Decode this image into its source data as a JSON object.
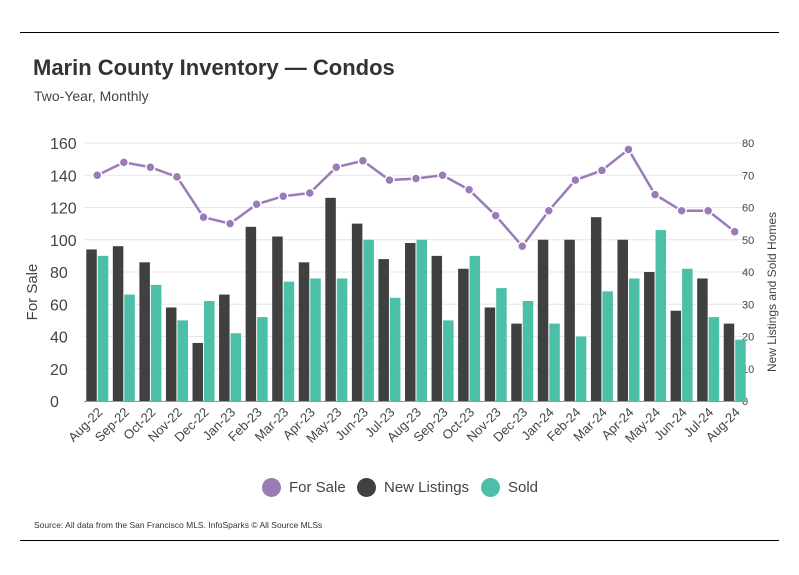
{
  "header": {
    "title": "Marin County Inventory — Condos",
    "subtitle": "Two-Year, Monthly"
  },
  "footer": {
    "source": "Source:  All data from the San Francisco MLS. InfoSparks © All Source MLSs"
  },
  "colors": {
    "for_sale": "#9b7ab8",
    "new_listings": "#404040",
    "sold": "#4bbfa8"
  },
  "legend": {
    "for_sale": "For Sale",
    "new_listings": "New Listings",
    "sold": "Sold"
  },
  "chart_data": {
    "type": "bar",
    "title": "Marin County Inventory — Condos",
    "subtitle": "Two-Year, Monthly",
    "categories": [
      "Aug-22",
      "Sep-22",
      "Oct-22",
      "Nov-22",
      "Dec-22",
      "Jan-23",
      "Feb-23",
      "Mar-23",
      "Apr-23",
      "May-23",
      "Jun-23",
      "Jul-23",
      "Aug-23",
      "Sep-23",
      "Oct-23",
      "Nov-23",
      "Dec-23",
      "Jan-24",
      "Feb-24",
      "Mar-24",
      "Apr-24",
      "May-24",
      "Jun-24",
      "Jul-24",
      "Aug-24"
    ],
    "ylabel": "For Sale",
    "y2label": "New Listings and Sold Homes",
    "ylim": [
      0,
      160
    ],
    "y2lim": [
      0,
      80
    ],
    "yticks": [
      0,
      20,
      40,
      60,
      80,
      100,
      120,
      140,
      160
    ],
    "y2ticks": [
      0,
      10,
      20,
      30,
      40,
      50,
      60,
      70,
      80
    ],
    "grid": true,
    "legend_position": "bottom",
    "series": [
      {
        "name": "For Sale",
        "type": "line",
        "axis": "left",
        "values": [
          140,
          148,
          145,
          139,
          114,
          110,
          122,
          127,
          129,
          145,
          149,
          137,
          138,
          140,
          131,
          115,
          96,
          118,
          137,
          143,
          156,
          128,
          118,
          118,
          105
        ]
      },
      {
        "name": "New Listings",
        "type": "bar",
        "axis": "right",
        "values": [
          47,
          48,
          43,
          29,
          18,
          33,
          54,
          51,
          43,
          63,
          55,
          44,
          49,
          45,
          41,
          29,
          24,
          50,
          50,
          57,
          50,
          40,
          28,
          38,
          24
        ]
      },
      {
        "name": "Sold",
        "type": "bar",
        "axis": "right",
        "values": [
          45,
          33,
          36,
          25,
          31,
          21,
          26,
          37,
          38,
          38,
          50,
          32,
          50,
          25,
          45,
          35,
          31,
          24,
          20,
          34,
          38,
          53,
          41,
          26,
          19
        ]
      }
    ]
  }
}
